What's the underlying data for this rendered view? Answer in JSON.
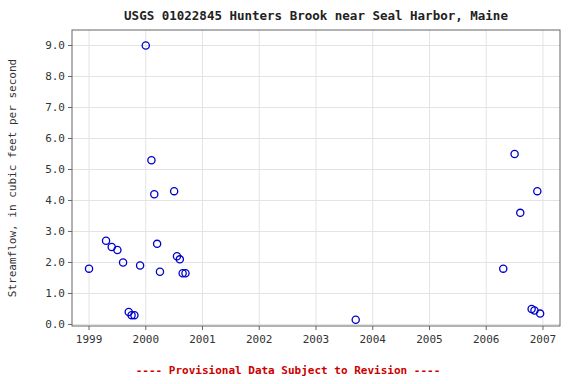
{
  "chart_data": {
    "type": "scatter",
    "title": "USGS 01022845 Hunters Brook near Seal Harbor, Maine",
    "ylabel": "Streamflow, in cubic feet per second",
    "annotation": "---- Provisional Data Subject to Revision ----",
    "x": [
      1999.0,
      1999.3,
      1999.4,
      1999.5,
      1999.6,
      1999.7,
      1999.75,
      1999.8,
      1999.9,
      2000.0,
      2000.1,
      2000.15,
      2000.2,
      2000.25,
      2000.5,
      2000.55,
      2000.6,
      2000.65,
      2000.7,
      2003.7,
      2006.3,
      2006.5,
      2006.6,
      2006.8,
      2006.85,
      2006.9,
      2006.95
    ],
    "y": [
      1.8,
      2.7,
      2.5,
      2.4,
      2.0,
      0.4,
      0.3,
      0.3,
      1.9,
      9.0,
      5.3,
      4.2,
      2.6,
      1.7,
      4.3,
      2.2,
      2.1,
      1.65,
      1.65,
      0.15,
      1.8,
      5.5,
      3.6,
      0.5,
      0.45,
      4.3,
      0.35
    ],
    "xlim": [
      1998.7,
      2007.3
    ],
    "ylim": [
      -0.05,
      9.5
    ],
    "xticks": [
      1999,
      2000,
      2001,
      2002,
      2003,
      2004,
      2005,
      2006,
      2007
    ],
    "yticks": [
      {
        "value": 0.0,
        "label": "0.0"
      },
      {
        "value": 1.0,
        "label": "1.0"
      },
      {
        "value": 2.0,
        "label": "2.0"
      },
      {
        "value": 3.0,
        "label": "3.0"
      },
      {
        "value": 4.0,
        "label": "4.0"
      },
      {
        "value": 5.0,
        "label": "5.0"
      },
      {
        "value": 6.0,
        "label": "6.0"
      },
      {
        "value": 7.0,
        "label": "7.0"
      },
      {
        "value": 8.0,
        "label": "8.0"
      },
      {
        "value": 9.0,
        "label": "9.0"
      }
    ],
    "color": "#0000cc",
    "marker": "open-circle",
    "grid": true
  }
}
